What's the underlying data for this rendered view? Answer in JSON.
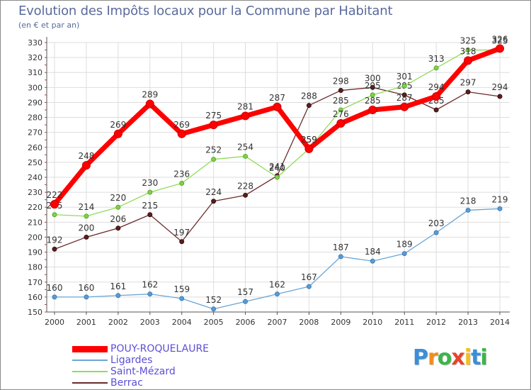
{
  "title": "Evolution des Impôts locaux pour la Commune par Habitant",
  "subtitle": "(en € et par an)",
  "brand": {
    "letters": [
      "P",
      "r",
      "o",
      "x",
      "i",
      "t",
      "i"
    ],
    "colors": [
      "#3a8fd8",
      "#f28c1e",
      "#3cb44b",
      "#e8442a",
      "#f2c01e",
      "#3a8fd8",
      "#3cb44b"
    ]
  },
  "chart_data": {
    "type": "line",
    "title": "Evolution des Impôts locaux pour la Commune par Habitant",
    "subtitle": "(en € et par an)",
    "xlabel": "",
    "ylabel": "",
    "ylim": [
      150,
      330
    ],
    "yticks": [
      150,
      160,
      170,
      180,
      190,
      200,
      210,
      220,
      230,
      240,
      250,
      260,
      270,
      280,
      290,
      300,
      310,
      320,
      330
    ],
    "grid": true,
    "x": [
      "2000",
      "2001",
      "2002",
      "2003",
      "2004",
      "2005",
      "2006",
      "2007",
      "2008",
      "2009",
      "2010",
      "2011",
      "2012",
      "2013",
      "2014"
    ],
    "series": [
      {
        "name": "POUY-ROQUELAURE",
        "color": "#ff0000",
        "values": [
          222,
          248,
          269,
          289,
          269,
          275,
          281,
          287,
          259,
          276,
          285,
          287,
          294,
          318,
          326
        ]
      },
      {
        "name": "Ligardes",
        "color": "#6aa6d6",
        "values": [
          160,
          160,
          161,
          162,
          159,
          152,
          157,
          162,
          167,
          187,
          184,
          189,
          203,
          218,
          219
        ]
      },
      {
        "name": "Saint-Mézard",
        "color": "#90dc5a",
        "values": [
          215,
          214,
          220,
          230,
          236,
          252,
          254,
          240,
          259,
          285,
          295,
          301,
          313,
          325,
          325
        ]
      },
      {
        "name": "Berrac",
        "color": "#6b2a2a",
        "values": [
          192,
          200,
          206,
          215,
          197,
          224,
          228,
          241,
          288,
          298,
          300,
          295,
          285,
          297,
          294
        ]
      }
    ]
  }
}
